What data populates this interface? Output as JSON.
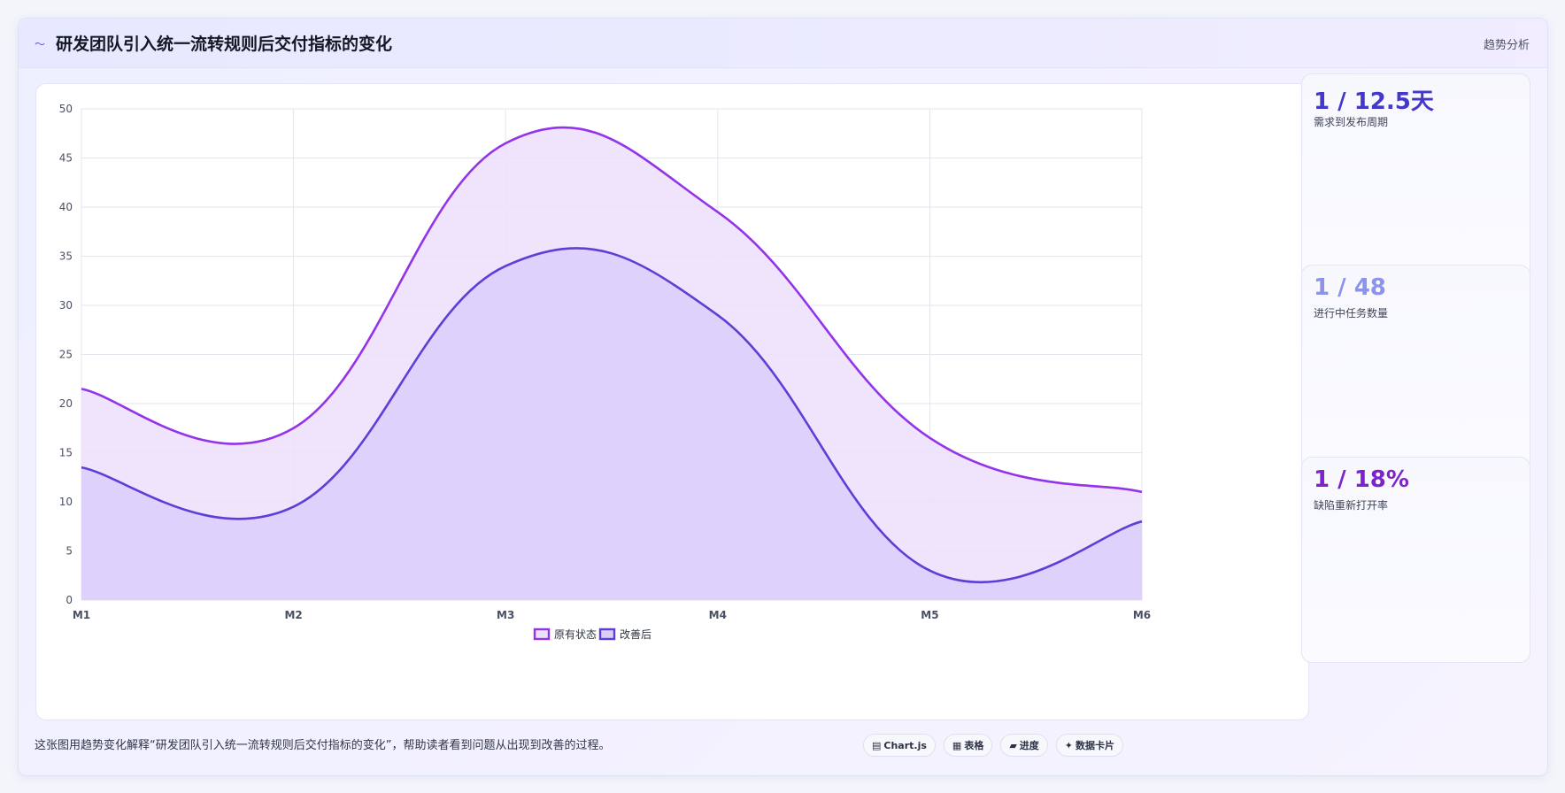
{
  "header": {
    "icon": "wave-icon",
    "title": "研发团队引入统一流转规则后交付指标的变化",
    "tag": "趋势分析"
  },
  "chart_data": {
    "type": "area",
    "x": [
      "M1",
      "M2",
      "M3",
      "M4",
      "M5",
      "M6"
    ],
    "ylim": [
      0,
      50
    ],
    "yticks": [
      0,
      5,
      10,
      15,
      20,
      25,
      30,
      35,
      40,
      45,
      50
    ],
    "grid": true,
    "legend_position": "bottom",
    "series": [
      {
        "name": "原有状态",
        "values": [
          21.5,
          17.5,
          46.5,
          39.5,
          16.5,
          11
        ],
        "color": "#9333ea",
        "fill": "#ecdffa"
      },
      {
        "name": "改善后",
        "values": [
          13.5,
          9.5,
          34,
          29,
          3,
          8
        ],
        "color": "#5b3fd6",
        "fill": "#dbcefa"
      }
    ]
  },
  "kpis": [
    {
      "value": "1 / 12.5天",
      "label": "需求到发布周期",
      "color": "#4338ca"
    },
    {
      "value": "1 / 48",
      "label": "进行中任务数量",
      "color": "#8b93ea"
    },
    {
      "value": "1 / 18%",
      "label": "缺陷重新打开率",
      "color": "#7e22ce"
    }
  ],
  "footer": {
    "text": "这张图用趋势变化解释“研发团队引入统一流转规则后交付指标的变化”，帮助读者看到问题从出现到改善的过程。",
    "pills": [
      {
        "icon": "▤",
        "label": "Chart.js"
      },
      {
        "icon": "▦",
        "label": "表格"
      },
      {
        "icon": "▰",
        "label": "进度"
      },
      {
        "icon": "✦",
        "label": "数据卡片"
      }
    ]
  }
}
